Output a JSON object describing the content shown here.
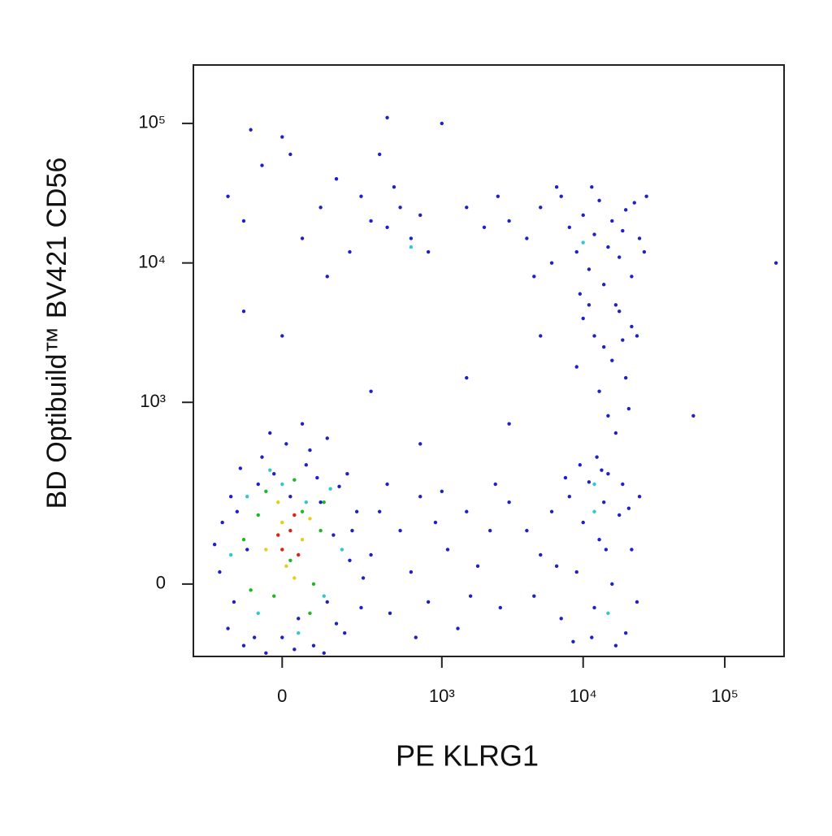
{
  "chart_data": {
    "type": "scatter",
    "x_label": "PE KLRG1",
    "y_label": "BD Optibuild™ BV421 CD56",
    "xlim": [
      -300,
      262144
    ],
    "ylim": [
      -150,
      262144
    ],
    "xticks": [
      0,
      {
        "value": 1000,
        "label": "10³"
      },
      {
        "value": 10000,
        "label": "10⁴"
      },
      {
        "value": 100000,
        "label": "10⁵"
      }
    ],
    "yticks": [
      0,
      {
        "value": 1000,
        "label": "10³"
      },
      {
        "value": 10000,
        "label": "10⁴"
      },
      {
        "value": 100000,
        "label": "10⁵"
      }
    ],
    "series": [
      {
        "color": "#2020c8",
        "x": [
          -180,
          -150,
          -120,
          -100,
          -90,
          -60,
          -40,
          -20,
          0,
          20,
          40,
          60,
          80,
          100,
          120,
          140,
          160,
          180,
          200,
          230,
          -170,
          -130,
          -70,
          30,
          90,
          150,
          210,
          260,
          -200,
          -50,
          10,
          70,
          -110,
          110,
          190,
          -140,
          250,
          -30,
          50,
          120,
          300,
          350,
          420,
          500,
          600,
          700,
          800,
          900,
          1100,
          1300,
          1500,
          1800,
          2200,
          2600,
          3000,
          400,
          650,
          1000,
          1600,
          2400,
          5000,
          6000,
          7000,
          8000,
          9000,
          10000,
          11000,
          12000,
          13000,
          14000,
          15000,
          16000,
          18000,
          20000,
          22000,
          25000,
          9500,
          12500,
          4000,
          4500,
          7500,
          17000,
          19000,
          11500,
          13500,
          6500,
          21000,
          24000,
          8500,
          14500,
          3000,
          4000,
          5000,
          6000,
          7000,
          8000,
          9000,
          10000,
          11000,
          12000,
          13000,
          14000,
          15000,
          16000,
          18000,
          20000,
          22000,
          25000,
          28000,
          2000,
          1500,
          2500,
          6500,
          9500,
          11500,
          17000,
          19000,
          23000,
          27000,
          4500,
          10000,
          12000,
          14000,
          16000,
          18000,
          20000,
          22000,
          13000,
          15000,
          17000,
          19000,
          11000,
          21000,
          24000,
          9000,
          -150,
          -100,
          -50,
          0,
          50,
          100,
          150,
          200,
          250,
          300,
          350,
          400,
          450,
          500,
          600,
          700,
          800,
          -80,
          20,
          120,
          -100,
          0,
          300,
          700,
          1500,
          3000,
          5000,
          60000,
          230000,
          1000,
          400
        ],
        "y": [
          20,
          -80,
          150,
          -120,
          60,
          250,
          -140,
          300,
          -100,
          200,
          -60,
          350,
          -120,
          180,
          -30,
          90,
          240,
          -90,
          40,
          150,
          120,
          -30,
          -100,
          -130,
          280,
          -70,
          100,
          10,
          70,
          400,
          500,
          450,
          330,
          -140,
          300,
          200,
          -40,
          600,
          700,
          550,
          50,
          150,
          -50,
          100,
          20,
          200,
          -30,
          120,
          60,
          -80,
          150,
          30,
          100,
          -40,
          180,
          250,
          -100,
          220,
          -20,
          250,
          50,
          150,
          -60,
          200,
          20,
          120,
          260,
          -40,
          80,
          180,
          300,
          0,
          140,
          -90,
          60,
          200,
          350,
          400,
          100,
          -20,
          280,
          -120,
          250,
          -100,
          320,
          30,
          160,
          -30,
          -110,
          60,
          20000,
          15000,
          25000,
          10000,
          30000,
          18000,
          12000,
          22000,
          9000,
          16000,
          28000,
          7000,
          13000,
          20000,
          11000,
          24000,
          8000,
          15000,
          30000,
          18000,
          25000,
          30000,
          35000,
          6000,
          35000,
          5000,
          17000,
          27000,
          12000,
          8000,
          4000,
          3000,
          2500,
          2000,
          4500,
          1500,
          3500,
          1200,
          800,
          600,
          2800,
          5000,
          900,
          3000,
          1800,
          30000,
          20000,
          50000,
          80000,
          15000,
          25000,
          40000,
          12000,
          30000,
          20000,
          60000,
          18000,
          35000,
          25000,
          15000,
          22000,
          12000,
          90000,
          60000,
          8000,
          4500,
          3000,
          1200,
          500,
          1500,
          700,
          3000,
          800,
          10000,
          100000,
          110000
        ]
      },
      {
        "color": "#30c8d0",
        "x": [
          -140,
          -60,
          0,
          60,
          110,
          170,
          -90,
          40,
          -30,
          130,
          12000,
          10000,
          600,
          12000,
          15000
        ],
        "y": [
          50,
          -50,
          250,
          180,
          -20,
          60,
          200,
          -90,
          320,
          230,
          150,
          14000,
          13000,
          250,
          -50
        ]
      },
      {
        "color": "#20b820",
        "x": [
          -100,
          -60,
          -20,
          20,
          50,
          80,
          100,
          -40,
          30,
          70,
          -80,
          110
        ],
        "y": [
          80,
          140,
          -20,
          40,
          150,
          0,
          100,
          220,
          270,
          -50,
          -10,
          180
        ]
      },
      {
        "color": "#e0d018",
        "x": [
          -40,
          0,
          30,
          50,
          -10,
          70,
          10
        ],
        "y": [
          60,
          120,
          10,
          80,
          180,
          130,
          30
        ]
      },
      {
        "color": "#e02010",
        "x": [
          0,
          20,
          40,
          -10,
          30
        ],
        "y": [
          60,
          100,
          50,
          90,
          140
        ]
      }
    ]
  }
}
